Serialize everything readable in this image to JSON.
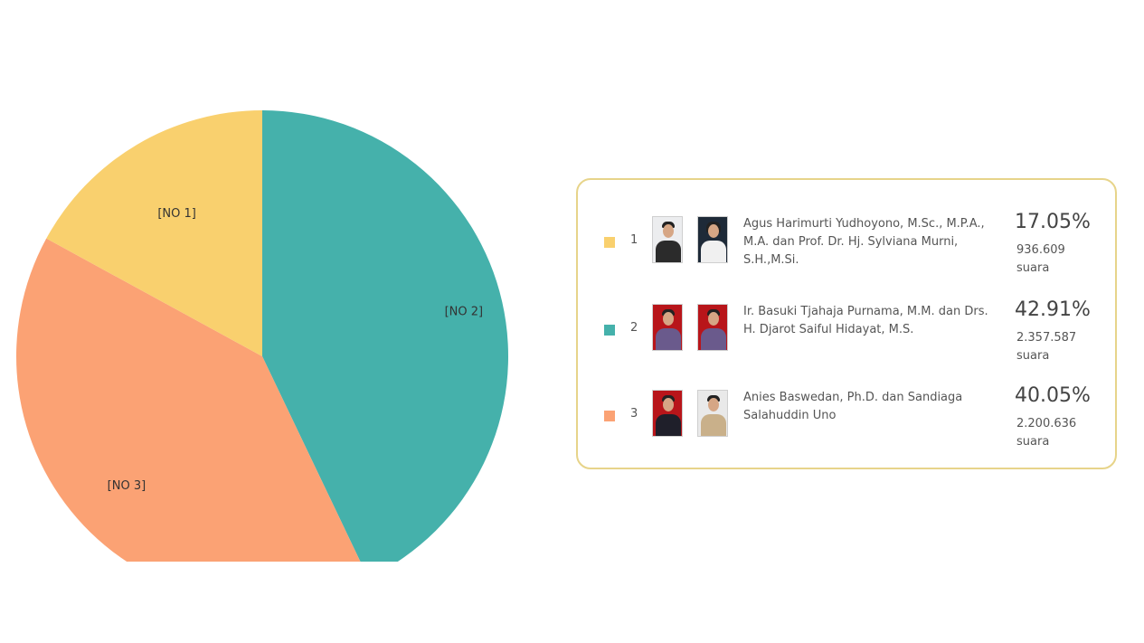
{
  "colors": {
    "no1": "#f9d06e",
    "no2": "#45b1ab",
    "no3": "#fba274",
    "legend_border": "#e7d48a"
  },
  "chart_data": {
    "type": "pie",
    "title": "",
    "slices": [
      {
        "label": "[NO 1]",
        "value": 17.05
      },
      {
        "label": "[NO 2]",
        "value": 42.91
      },
      {
        "label": "[NO 3]",
        "value": 40.05
      }
    ],
    "legend_placement": "right"
  },
  "legend": {
    "rows": [
      {
        "number": "1",
        "name": "Agus Harimurti Yudhoyono, M.Sc., M.P.A., M.A. dan Prof. Dr. Hj. Sylviana Murni, S.H.,M.Si.",
        "percent": "17.05%",
        "votes": "936.609",
        "votes_unit": "suara"
      },
      {
        "number": "2",
        "name": "Ir. Basuki Tjahaja Purnama, M.M. dan Drs. H. Djarot Saiful Hidayat, M.S.",
        "percent": "42.91%",
        "votes": "2.357.587",
        "votes_unit": "suara"
      },
      {
        "number": "3",
        "name": "Anies Baswedan, Ph.D. dan Sandiaga Salahuddin Uno",
        "percent": "40.05%",
        "votes": "2.200.636",
        "votes_unit": "suara"
      }
    ]
  }
}
